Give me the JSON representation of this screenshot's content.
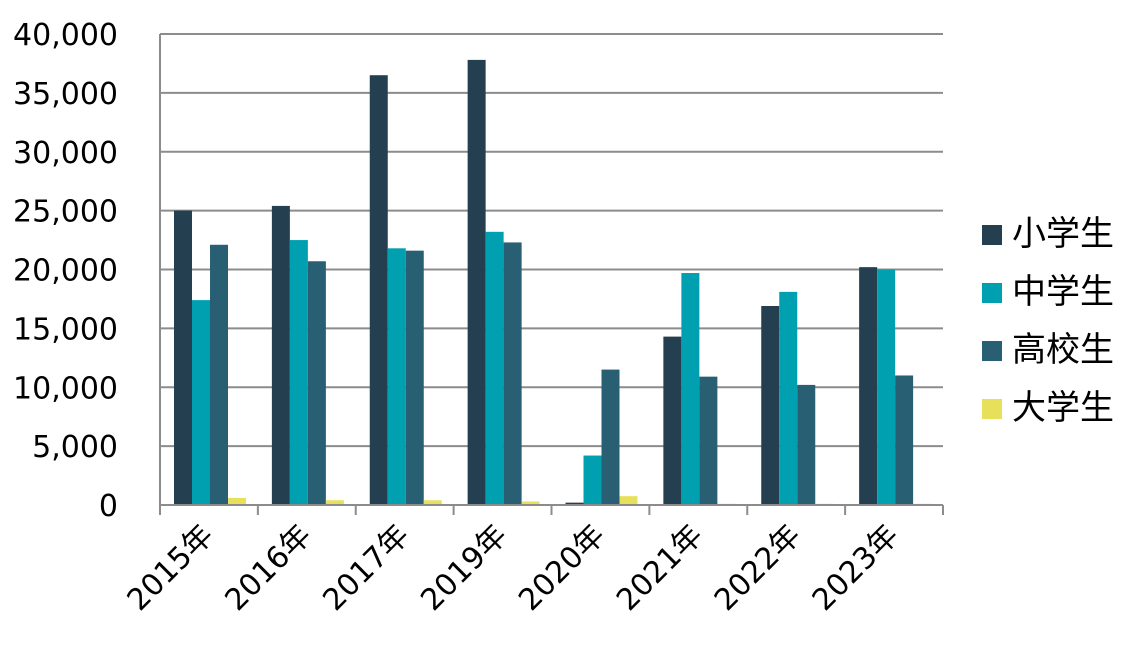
{
  "chart_data": {
    "type": "bar",
    "title": "",
    "xlabel": "",
    "ylabel": "",
    "categories": [
      "2015年",
      "2016年",
      "2017年",
      "2019年",
      "2020年",
      "2021年",
      "2022年",
      "2023年"
    ],
    "series": [
      {
        "name": "小学生",
        "color": "#243F4F",
        "values": [
          25000,
          25400,
          36500,
          37800,
          200,
          14300,
          16900,
          20200
        ]
      },
      {
        "name": "中学生",
        "color": "#00A0B0",
        "values": [
          17400,
          22500,
          21800,
          23200,
          4200,
          19700,
          18100,
          20000
        ]
      },
      {
        "name": "高校生",
        "color": "#285F73",
        "values": [
          22100,
          20700,
          21600,
          22300,
          11500,
          10900,
          10200,
          11000
        ]
      },
      {
        "name": "大学生",
        "color": "#E6E05A",
        "values": [
          600,
          400,
          400,
          300,
          750,
          100,
          100,
          100
        ]
      }
    ],
    "ylim": [
      0,
      40000
    ],
    "yticks": [
      "0",
      "5,000",
      "10,000",
      "15,000",
      "20,000",
      "25,000",
      "30,000",
      "35,000",
      "40,000"
    ],
    "ytick_values": [
      0,
      5000,
      10000,
      15000,
      20000,
      25000,
      30000,
      35000,
      40000
    ],
    "grid": true,
    "legend_position": "right"
  }
}
